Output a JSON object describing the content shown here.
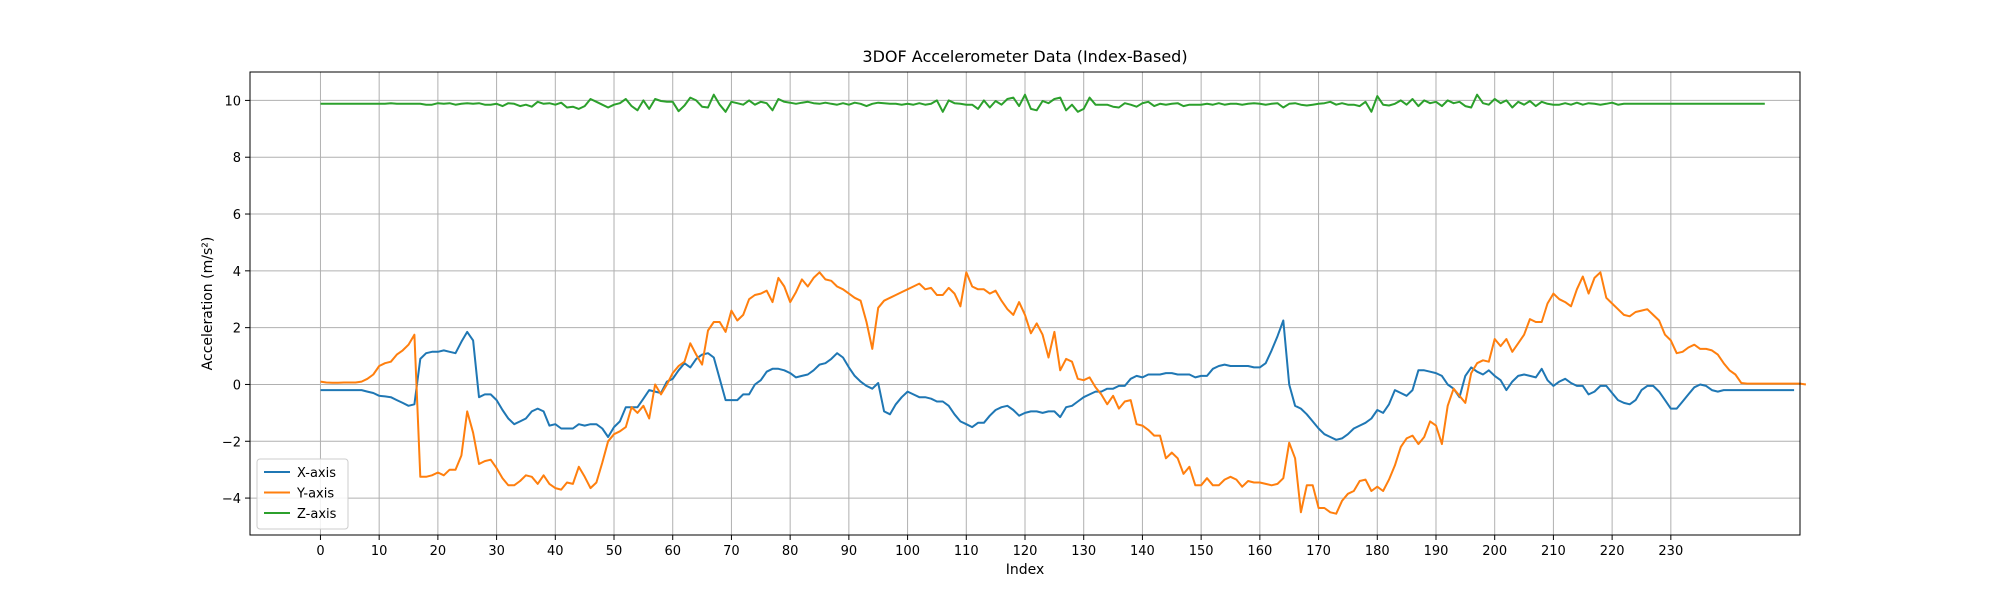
{
  "chart_data": {
    "type": "line",
    "title": "3DOF Accelerometer Data (Index-Based)",
    "xlabel": "Index",
    "ylabel": "Acceleration (m/s²)",
    "xlim": [
      -12,
      252
    ],
    "ylim": [
      -5.3,
      11.0
    ],
    "xticks": [
      0,
      10,
      20,
      30,
      40,
      50,
      60,
      70,
      80,
      90,
      100,
      110,
      120,
      130,
      140,
      150,
      160,
      170,
      180,
      190,
      200,
      210,
      220,
      230
    ],
    "yticks": [
      -4,
      -2,
      0,
      2,
      4,
      6,
      8,
      10
    ],
    "grid": true,
    "legend_position": "lower-left",
    "series": [
      {
        "name": "X-axis",
        "color": "#1f77b4",
        "values": [
          -0.2,
          -0.2,
          -0.2,
          -0.2,
          -0.2,
          -0.2,
          -0.2,
          -0.2,
          -0.25,
          -0.3,
          -0.4,
          -0.42,
          -0.45,
          -0.55,
          -0.65,
          -0.75,
          -0.7,
          0.9,
          1.1,
          1.15,
          1.15,
          1.2,
          1.15,
          1.1,
          1.5,
          1.85,
          1.55,
          -0.45,
          -0.35,
          -0.35,
          -0.55,
          -0.9,
          -1.2,
          -1.4,
          -1.3,
          -1.2,
          -0.95,
          -0.85,
          -0.95,
          -1.45,
          -1.4,
          -1.55,
          -1.55,
          -1.55,
          -1.4,
          -1.45,
          -1.4,
          -1.4,
          -1.55,
          -1.85,
          -1.5,
          -1.3,
          -0.8,
          -0.8,
          -0.8,
          -0.5,
          -0.2,
          -0.25,
          -0.3,
          0.1,
          0.2,
          0.5,
          0.75,
          0.6,
          0.9,
          1.05,
          1.1,
          0.95,
          0.2,
          -0.55,
          -0.55,
          -0.55,
          -0.35,
          -0.35,
          0.0,
          0.15,
          0.45,
          0.55,
          0.55,
          0.5,
          0.4,
          0.25,
          0.3,
          0.35,
          0.5,
          0.7,
          0.75,
          0.9,
          1.1,
          0.95,
          0.6,
          0.3,
          0.1,
          -0.05,
          -0.15,
          0.05,
          -0.95,
          -1.05,
          -0.7,
          -0.45,
          -0.25,
          -0.35,
          -0.45,
          -0.45,
          -0.5,
          -0.6,
          -0.6,
          -0.75,
          -1.05,
          -1.3,
          -1.4,
          -1.5,
          -1.35,
          -1.35,
          -1.1,
          -0.9,
          -0.8,
          -0.75,
          -0.9,
          -1.1,
          -1.0,
          -0.95,
          -0.95,
          -1.0,
          -0.95,
          -0.95,
          -1.15,
          -0.8,
          -0.75,
          -0.6,
          -0.45,
          -0.35,
          -0.25,
          -0.25,
          -0.15,
          -0.15,
          -0.05,
          -0.05,
          0.2,
          0.3,
          0.25,
          0.35,
          0.35,
          0.35,
          0.4,
          0.4,
          0.35,
          0.35,
          0.35,
          0.25,
          0.3,
          0.3,
          0.55,
          0.65,
          0.7,
          0.65,
          0.65,
          0.65,
          0.65,
          0.6,
          0.6,
          0.75,
          1.2,
          1.7,
          2.25,
          0.0,
          -0.75,
          -0.85,
          -1.05,
          -1.3,
          -1.55,
          -1.75,
          -1.85,
          -1.95,
          -1.9,
          -1.75,
          -1.55,
          -1.45,
          -1.35,
          -1.2,
          -0.9,
          -1.0,
          -0.7,
          -0.2,
          -0.3,
          -0.4,
          -0.2,
          0.5,
          0.5,
          0.45,
          0.4,
          0.3,
          0.0,
          -0.15,
          -0.45,
          0.3,
          0.6,
          0.45,
          0.35,
          0.5,
          0.3,
          0.15,
          -0.2,
          0.1,
          0.3,
          0.35,
          0.3,
          0.25,
          0.55,
          0.15,
          -0.05,
          0.1,
          0.2,
          0.05,
          -0.05,
          -0.05,
          -0.35,
          -0.25,
          -0.05,
          -0.05,
          -0.3,
          -0.55,
          -0.65,
          -0.7,
          -0.55,
          -0.2,
          -0.05,
          -0.05,
          -0.25,
          -0.55,
          -0.85,
          -0.85,
          -0.6,
          -0.35,
          -0.1,
          0.0,
          -0.05,
          -0.2,
          -0.25,
          -0.2,
          -0.2,
          -0.2,
          -0.2,
          -0.2,
          -0.2,
          -0.2,
          -0.2,
          -0.2,
          -0.2,
          -0.2,
          -0.2,
          -0.2
        ]
      },
      {
        "name": "Y-axis",
        "color": "#ff7f0e",
        "values": [
          0.1,
          0.07,
          0.06,
          0.06,
          0.07,
          0.07,
          0.07,
          0.1,
          0.2,
          0.35,
          0.65,
          0.75,
          0.8,
          1.05,
          1.2,
          1.4,
          1.75,
          -3.25,
          -3.25,
          -3.2,
          -3.1,
          -3.2,
          -3.0,
          -3.0,
          -2.5,
          -0.95,
          -1.7,
          -2.8,
          -2.7,
          -2.65,
          -2.95,
          -3.3,
          -3.55,
          -3.55,
          -3.4,
          -3.2,
          -3.25,
          -3.5,
          -3.2,
          -3.5,
          -3.65,
          -3.7,
          -3.45,
          -3.5,
          -2.9,
          -3.25,
          -3.65,
          -3.45,
          -2.75,
          -2.0,
          -1.75,
          -1.65,
          -1.5,
          -0.8,
          -1.0,
          -0.75,
          -1.2,
          0.0,
          -0.35,
          0.0,
          0.4,
          0.65,
          0.8,
          1.45,
          1.05,
          0.7,
          1.9,
          2.2,
          2.2,
          1.85,
          2.6,
          2.25,
          2.45,
          3.0,
          3.15,
          3.2,
          3.3,
          2.9,
          3.75,
          3.45,
          2.9,
          3.25,
          3.7,
          3.45,
          3.75,
          3.95,
          3.7,
          3.65,
          3.45,
          3.35,
          3.2,
          3.05,
          2.95,
          2.2,
          1.25,
          2.7,
          2.95,
          3.05,
          3.15,
          3.25,
          3.35,
          3.45,
          3.55,
          3.35,
          3.4,
          3.15,
          3.15,
          3.4,
          3.2,
          2.75,
          3.95,
          3.45,
          3.35,
          3.35,
          3.2,
          3.3,
          2.95,
          2.65,
          2.45,
          2.9,
          2.45,
          1.8,
          2.15,
          1.75,
          0.95,
          1.85,
          0.5,
          0.9,
          0.8,
          0.2,
          0.15,
          0.25,
          -0.1,
          -0.35,
          -0.7,
          -0.4,
          -0.85,
          -0.6,
          -0.55,
          -1.4,
          -1.45,
          -1.6,
          -1.8,
          -1.8,
          -2.6,
          -2.4,
          -2.6,
          -3.15,
          -2.9,
          -3.55,
          -3.55,
          -3.3,
          -3.55,
          -3.55,
          -3.35,
          -3.25,
          -3.35,
          -3.6,
          -3.4,
          -3.45,
          -3.45,
          -3.5,
          -3.55,
          -3.5,
          -3.3,
          -2.05,
          -2.6,
          -4.5,
          -3.55,
          -3.55,
          -4.35,
          -4.35,
          -4.5,
          -4.55,
          -4.1,
          -3.85,
          -3.75,
          -3.4,
          -3.35,
          -3.75,
          -3.6,
          -3.75,
          -3.35,
          -2.85,
          -2.2,
          -1.9,
          -1.8,
          -2.1,
          -1.85,
          -1.3,
          -1.45,
          -2.1,
          -0.75,
          -0.15,
          -0.4,
          -0.65,
          0.4,
          0.75,
          0.85,
          0.8,
          1.6,
          1.35,
          1.6,
          1.15,
          1.45,
          1.75,
          2.3,
          2.2,
          2.2,
          2.85,
          3.2,
          3.0,
          2.9,
          2.75,
          3.35,
          3.8,
          3.2,
          3.75,
          3.95,
          3.05,
          2.85,
          2.65,
          2.45,
          2.4,
          2.55,
          2.6,
          2.65,
          2.45,
          2.25,
          1.75,
          1.55,
          1.1,
          1.15,
          1.3,
          1.4,
          1.25,
          1.25,
          1.2,
          1.05,
          0.75,
          0.5,
          0.35,
          0.05,
          0.03,
          0.03,
          0.03,
          0.03,
          0.03,
          0.03,
          0.03,
          0.03,
          0.03,
          0.03,
          0.0
        ]
      },
      {
        "name": "Z-axis",
        "color": "#2ca02c",
        "values": [
          9.88,
          9.88,
          9.88,
          9.88,
          9.88,
          9.88,
          9.88,
          9.88,
          9.88,
          9.88,
          9.88,
          9.88,
          9.9,
          9.88,
          9.88,
          9.88,
          9.88,
          9.88,
          9.85,
          9.85,
          9.9,
          9.88,
          9.9,
          9.85,
          9.88,
          9.9,
          9.88,
          9.9,
          9.85,
          9.85,
          9.88,
          9.8,
          9.9,
          9.88,
          9.8,
          9.85,
          9.78,
          9.95,
          9.88,
          9.9,
          9.85,
          9.92,
          9.75,
          9.78,
          9.7,
          9.8,
          10.05,
          9.95,
          9.85,
          9.75,
          9.85,
          9.9,
          10.05,
          9.8,
          9.65,
          10.0,
          9.7,
          10.05,
          9.98,
          9.95,
          9.95,
          9.62,
          9.82,
          10.1,
          10.0,
          9.78,
          9.75,
          10.2,
          9.85,
          9.6,
          9.95,
          9.9,
          9.85,
          10.0,
          9.85,
          9.95,
          9.9,
          9.65,
          10.05,
          9.95,
          9.92,
          9.88,
          9.92,
          9.95,
          9.9,
          9.88,
          9.92,
          9.88,
          9.85,
          9.9,
          9.85,
          9.92,
          9.88,
          9.8,
          9.88,
          9.92,
          9.9,
          9.88,
          9.88,
          9.85,
          9.88,
          9.85,
          9.9,
          9.85,
          9.88,
          10.0,
          9.6,
          10.0,
          9.9,
          9.88,
          9.85,
          9.85,
          9.7,
          10.0,
          9.75,
          9.98,
          9.85,
          10.05,
          10.1,
          9.8,
          10.2,
          9.7,
          9.65,
          9.98,
          9.9,
          10.05,
          10.1,
          9.65,
          9.85,
          9.6,
          9.7,
          10.1,
          9.85,
          9.85,
          9.85,
          9.78,
          9.75,
          9.9,
          9.85,
          9.78,
          9.9,
          9.95,
          9.8,
          9.88,
          9.85,
          9.88,
          9.9,
          9.8,
          9.85,
          9.85,
          9.85,
          9.88,
          9.85,
          9.9,
          9.85,
          9.88,
          9.88,
          9.85,
          9.88,
          9.9,
          9.88,
          9.85,
          9.88,
          9.9,
          9.75,
          9.88,
          9.9,
          9.85,
          9.82,
          9.85,
          9.88,
          9.9,
          9.95,
          9.85,
          9.9,
          9.85,
          9.85,
          9.8,
          9.95,
          9.6,
          10.15,
          9.85,
          9.82,
          9.88,
          10.0,
          9.85,
          10.05,
          9.8,
          10.0,
          9.9,
          9.95,
          9.8,
          10.0,
          9.9,
          9.95,
          9.8,
          9.75,
          10.2,
          9.9,
          9.85,
          10.05,
          9.9,
          10.0,
          9.75,
          9.95,
          9.85,
          9.98,
          9.8,
          9.95,
          9.88,
          9.85,
          9.85,
          9.9,
          9.85,
          9.92,
          9.85,
          9.9,
          9.88,
          9.85,
          9.88,
          9.92,
          9.85,
          9.88,
          9.88,
          9.88,
          9.88,
          9.88,
          9.88,
          9.88,
          9.88,
          9.88,
          9.88,
          9.88,
          9.88,
          9.88,
          9.88,
          9.88,
          9.88,
          9.88,
          9.88,
          9.88,
          9.88,
          9.88,
          9.88,
          9.88,
          9.88,
          9.88
        ]
      }
    ]
  }
}
